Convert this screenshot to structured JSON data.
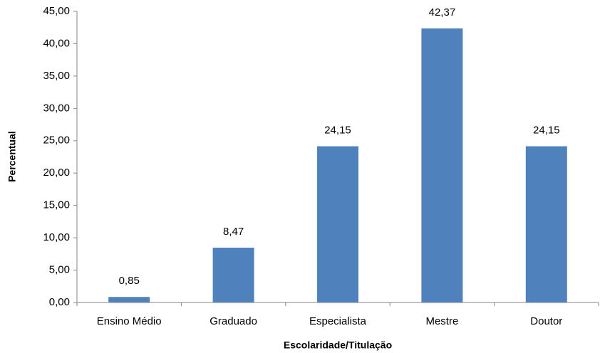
{
  "chart_data": {
    "type": "bar",
    "x_label": "Escolaridade/Titulação",
    "y_label": "Percentual",
    "categories": [
      "Ensino Médio",
      "Graduado",
      "Especialista",
      "Mestre",
      "Doutor"
    ],
    "values": [
      0.85,
      8.47,
      24.15,
      42.37,
      24.15
    ],
    "value_labels": [
      "0,85",
      "8,47",
      "24,15",
      "42,37",
      "24,15"
    ],
    "color": "#4f81bd",
    "ylim": [
      0,
      45
    ],
    "yticks": [
      {
        "value": 0,
        "label": "0,00"
      },
      {
        "value": 5,
        "label": "5,00"
      },
      {
        "value": 10,
        "label": "10,00"
      },
      {
        "value": 15,
        "label": "15,00"
      },
      {
        "value": 20,
        "label": "20,00"
      },
      {
        "value": 25,
        "label": "25,00"
      },
      {
        "value": 30,
        "label": "30,00"
      },
      {
        "value": 35,
        "label": "35,00"
      },
      {
        "value": 40,
        "label": "40,00"
      },
      {
        "value": 45,
        "label": "45,00"
      }
    ],
    "grid": false
  }
}
